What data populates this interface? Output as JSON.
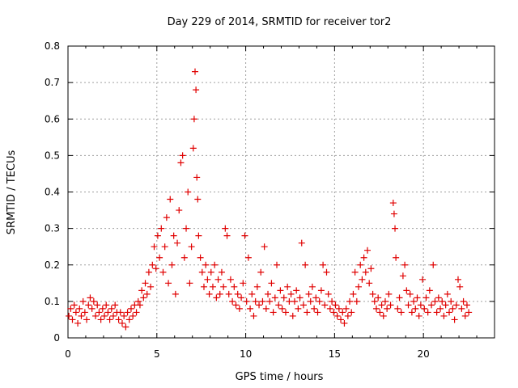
{
  "chart_data": {
    "type": "scatter",
    "title": "Day 229 of 2014, SRMTID for receiver tor2",
    "xlabel": "GPS time / hours",
    "ylabel": "SRMTID / TECUs",
    "xlim": [
      0,
      24
    ],
    "ylim": [
      0,
      0.8
    ],
    "xticks": [
      0,
      5,
      10,
      15,
      20
    ],
    "xtick_labels": [
      "0",
      "5",
      "10",
      "15",
      "20"
    ],
    "yticks": [
      0,
      0.1,
      0.2,
      0.3,
      0.4,
      0.5,
      0.6,
      0.7,
      0.8
    ],
    "ytick_labels": [
      "0",
      "0.1",
      "0.2",
      "0.3",
      "0.4",
      "0.5",
      "0.6",
      "0.7",
      "0.8"
    ],
    "grid": true,
    "marker": "+",
    "color": "#e00000",
    "series": [
      {
        "name": "SRMTID",
        "points": [
          [
            0.05,
            0.06
          ],
          [
            0.15,
            0.08
          ],
          [
            0.25,
            0.05
          ],
          [
            0.35,
            0.09
          ],
          [
            0.45,
            0.07
          ],
          [
            0.55,
            0.04
          ],
          [
            0.65,
            0.08
          ],
          [
            0.75,
            0.06
          ],
          [
            0.85,
            0.1
          ],
          [
            0.95,
            0.07
          ],
          [
            1.05,
            0.05
          ],
          [
            1.15,
            0.09
          ],
          [
            1.25,
            0.11
          ],
          [
            1.35,
            0.08
          ],
          [
            1.45,
            0.1
          ],
          [
            1.55,
            0.06
          ],
          [
            1.65,
            0.09
          ],
          [
            1.75,
            0.07
          ],
          [
            1.85,
            0.05
          ],
          [
            1.95,
            0.08
          ],
          [
            2.05,
            0.06
          ],
          [
            2.15,
            0.09
          ],
          [
            2.25,
            0.07
          ],
          [
            2.35,
            0.05
          ],
          [
            2.45,
            0.08
          ],
          [
            2.55,
            0.06
          ],
          [
            2.65,
            0.09
          ],
          [
            2.75,
            0.07
          ],
          [
            2.85,
            0.05
          ],
          [
            2.95,
            0.07
          ],
          [
            3.05,
            0.04
          ],
          [
            3.15,
            0.06
          ],
          [
            3.25,
            0.03
          ],
          [
            3.35,
            0.07
          ],
          [
            3.45,
            0.05
          ],
          [
            3.55,
            0.08
          ],
          [
            3.65,
            0.06
          ],
          [
            3.75,
            0.09
          ],
          [
            3.85,
            0.07
          ],
          [
            3.95,
            0.1
          ],
          [
            4.05,
            0.09
          ],
          [
            4.15,
            0.13
          ],
          [
            4.25,
            0.11
          ],
          [
            4.35,
            0.15
          ],
          [
            4.45,
            0.12
          ],
          [
            4.55,
            0.18
          ],
          [
            4.65,
            0.14
          ],
          [
            4.75,
            0.2
          ],
          [
            4.85,
            0.25
          ],
          [
            4.95,
            0.19
          ],
          [
            5.05,
            0.28
          ],
          [
            5.15,
            0.22
          ],
          [
            5.25,
            0.3
          ],
          [
            5.35,
            0.18
          ],
          [
            5.45,
            0.25
          ],
          [
            5.55,
            0.33
          ],
          [
            5.65,
            0.15
          ],
          [
            5.75,
            0.38
          ],
          [
            5.85,
            0.2
          ],
          [
            5.95,
            0.28
          ],
          [
            6.05,
            0.12
          ],
          [
            6.15,
            0.26
          ],
          [
            6.25,
            0.35
          ],
          [
            6.35,
            0.48
          ],
          [
            6.45,
            0.5
          ],
          [
            6.55,
            0.22
          ],
          [
            6.65,
            0.3
          ],
          [
            6.75,
            0.4
          ],
          [
            6.85,
            0.15
          ],
          [
            6.95,
            0.25
          ],
          [
            7.05,
            0.52
          ],
          [
            7.1,
            0.6
          ],
          [
            7.15,
            0.73
          ],
          [
            7.2,
            0.68
          ],
          [
            7.25,
            0.44
          ],
          [
            7.3,
            0.38
          ],
          [
            7.35,
            0.28
          ],
          [
            7.45,
            0.22
          ],
          [
            7.55,
            0.18
          ],
          [
            7.65,
            0.14
          ],
          [
            7.75,
            0.2
          ],
          [
            7.85,
            0.16
          ],
          [
            7.95,
            0.12
          ],
          [
            8.05,
            0.18
          ],
          [
            8.15,
            0.14
          ],
          [
            8.25,
            0.2
          ],
          [
            8.35,
            0.11
          ],
          [
            8.45,
            0.16
          ],
          [
            8.55,
            0.12
          ],
          [
            8.65,
            0.18
          ],
          [
            8.75,
            0.14
          ],
          [
            8.85,
            0.3
          ],
          [
            8.95,
            0.28
          ],
          [
            9.05,
            0.12
          ],
          [
            9.15,
            0.16
          ],
          [
            9.25,
            0.1
          ],
          [
            9.35,
            0.14
          ],
          [
            9.45,
            0.09
          ],
          [
            9.55,
            0.12
          ],
          [
            9.65,
            0.08
          ],
          [
            9.75,
            0.11
          ],
          [
            9.85,
            0.15
          ],
          [
            9.95,
            0.28
          ],
          [
            10.05,
            0.1
          ],
          [
            10.15,
            0.22
          ],
          [
            10.25,
            0.08
          ],
          [
            10.35,
            0.12
          ],
          [
            10.45,
            0.06
          ],
          [
            10.55,
            0.1
          ],
          [
            10.65,
            0.14
          ],
          [
            10.75,
            0.09
          ],
          [
            10.85,
            0.18
          ],
          [
            10.95,
            0.1
          ],
          [
            11.05,
            0.25
          ],
          [
            11.15,
            0.08
          ],
          [
            11.25,
            0.12
          ],
          [
            11.35,
            0.1
          ],
          [
            11.45,
            0.15
          ],
          [
            11.55,
            0.07
          ],
          [
            11.65,
            0.11
          ],
          [
            11.75,
            0.2
          ],
          [
            11.85,
            0.09
          ],
          [
            11.95,
            0.13
          ],
          [
            12.05,
            0.08
          ],
          [
            12.15,
            0.11
          ],
          [
            12.25,
            0.07
          ],
          [
            12.35,
            0.14
          ],
          [
            12.45,
            0.1
          ],
          [
            12.55,
            0.12
          ],
          [
            12.65,
            0.06
          ],
          [
            12.75,
            0.1
          ],
          [
            12.85,
            0.13
          ],
          [
            12.95,
            0.08
          ],
          [
            13.05,
            0.11
          ],
          [
            13.15,
            0.26
          ],
          [
            13.25,
            0.09
          ],
          [
            13.35,
            0.2
          ],
          [
            13.45,
            0.07
          ],
          [
            13.55,
            0.12
          ],
          [
            13.65,
            0.1
          ],
          [
            13.75,
            0.14
          ],
          [
            13.85,
            0.08
          ],
          [
            13.95,
            0.11
          ],
          [
            14.05,
            0.07
          ],
          [
            14.15,
            0.1
          ],
          [
            14.25,
            0.13
          ],
          [
            14.35,
            0.2
          ],
          [
            14.45,
            0.09
          ],
          [
            14.55,
            0.18
          ],
          [
            14.65,
            0.12
          ],
          [
            14.75,
            0.08
          ],
          [
            14.85,
            0.1
          ],
          [
            14.95,
            0.07
          ],
          [
            15.05,
            0.09
          ],
          [
            15.15,
            0.06
          ],
          [
            15.25,
            0.08
          ],
          [
            15.35,
            0.05
          ],
          [
            15.45,
            0.07
          ],
          [
            15.55,
            0.04
          ],
          [
            15.65,
            0.08
          ],
          [
            15.75,
            0.06
          ],
          [
            15.85,
            0.1
          ],
          [
            15.95,
            0.07
          ],
          [
            16.05,
            0.12
          ],
          [
            16.15,
            0.18
          ],
          [
            16.25,
            0.1
          ],
          [
            16.35,
            0.14
          ],
          [
            16.45,
            0.2
          ],
          [
            16.55,
            0.16
          ],
          [
            16.65,
            0.22
          ],
          [
            16.75,
            0.18
          ],
          [
            16.85,
            0.24
          ],
          [
            16.95,
            0.15
          ],
          [
            17.05,
            0.19
          ],
          [
            17.15,
            0.12
          ],
          [
            17.25,
            0.1
          ],
          [
            17.35,
            0.08
          ],
          [
            17.45,
            0.11
          ],
          [
            17.55,
            0.07
          ],
          [
            17.65,
            0.09
          ],
          [
            17.75,
            0.06
          ],
          [
            17.85,
            0.1
          ],
          [
            17.95,
            0.08
          ],
          [
            18.05,
            0.12
          ],
          [
            18.15,
            0.09
          ],
          [
            18.3,
            0.37
          ],
          [
            18.35,
            0.34
          ],
          [
            18.4,
            0.3
          ],
          [
            18.45,
            0.22
          ],
          [
            18.55,
            0.08
          ],
          [
            18.65,
            0.11
          ],
          [
            18.75,
            0.07
          ],
          [
            18.85,
            0.17
          ],
          [
            18.95,
            0.2
          ],
          [
            19.05,
            0.13
          ],
          [
            19.15,
            0.09
          ],
          [
            19.25,
            0.12
          ],
          [
            19.35,
            0.07
          ],
          [
            19.45,
            0.1
          ],
          [
            19.55,
            0.08
          ],
          [
            19.65,
            0.11
          ],
          [
            19.75,
            0.06
          ],
          [
            19.85,
            0.09
          ],
          [
            19.95,
            0.16
          ],
          [
            20.05,
            0.08
          ],
          [
            20.15,
            0.11
          ],
          [
            20.25,
            0.07
          ],
          [
            20.35,
            0.13
          ],
          [
            20.45,
            0.09
          ],
          [
            20.55,
            0.2
          ],
          [
            20.65,
            0.1
          ],
          [
            20.75,
            0.07
          ],
          [
            20.85,
            0.11
          ],
          [
            20.95,
            0.08
          ],
          [
            21.05,
            0.1
          ],
          [
            21.15,
            0.06
          ],
          [
            21.25,
            0.09
          ],
          [
            21.35,
            0.12
          ],
          [
            21.45,
            0.07
          ],
          [
            21.55,
            0.1
          ],
          [
            21.65,
            0.08
          ],
          [
            21.75,
            0.05
          ],
          [
            21.85,
            0.09
          ],
          [
            21.95,
            0.16
          ],
          [
            22.05,
            0.14
          ],
          [
            22.15,
            0.08
          ],
          [
            22.25,
            0.1
          ],
          [
            22.35,
            0.06
          ],
          [
            22.45,
            0.09
          ],
          [
            22.55,
            0.07
          ]
        ]
      }
    ]
  }
}
